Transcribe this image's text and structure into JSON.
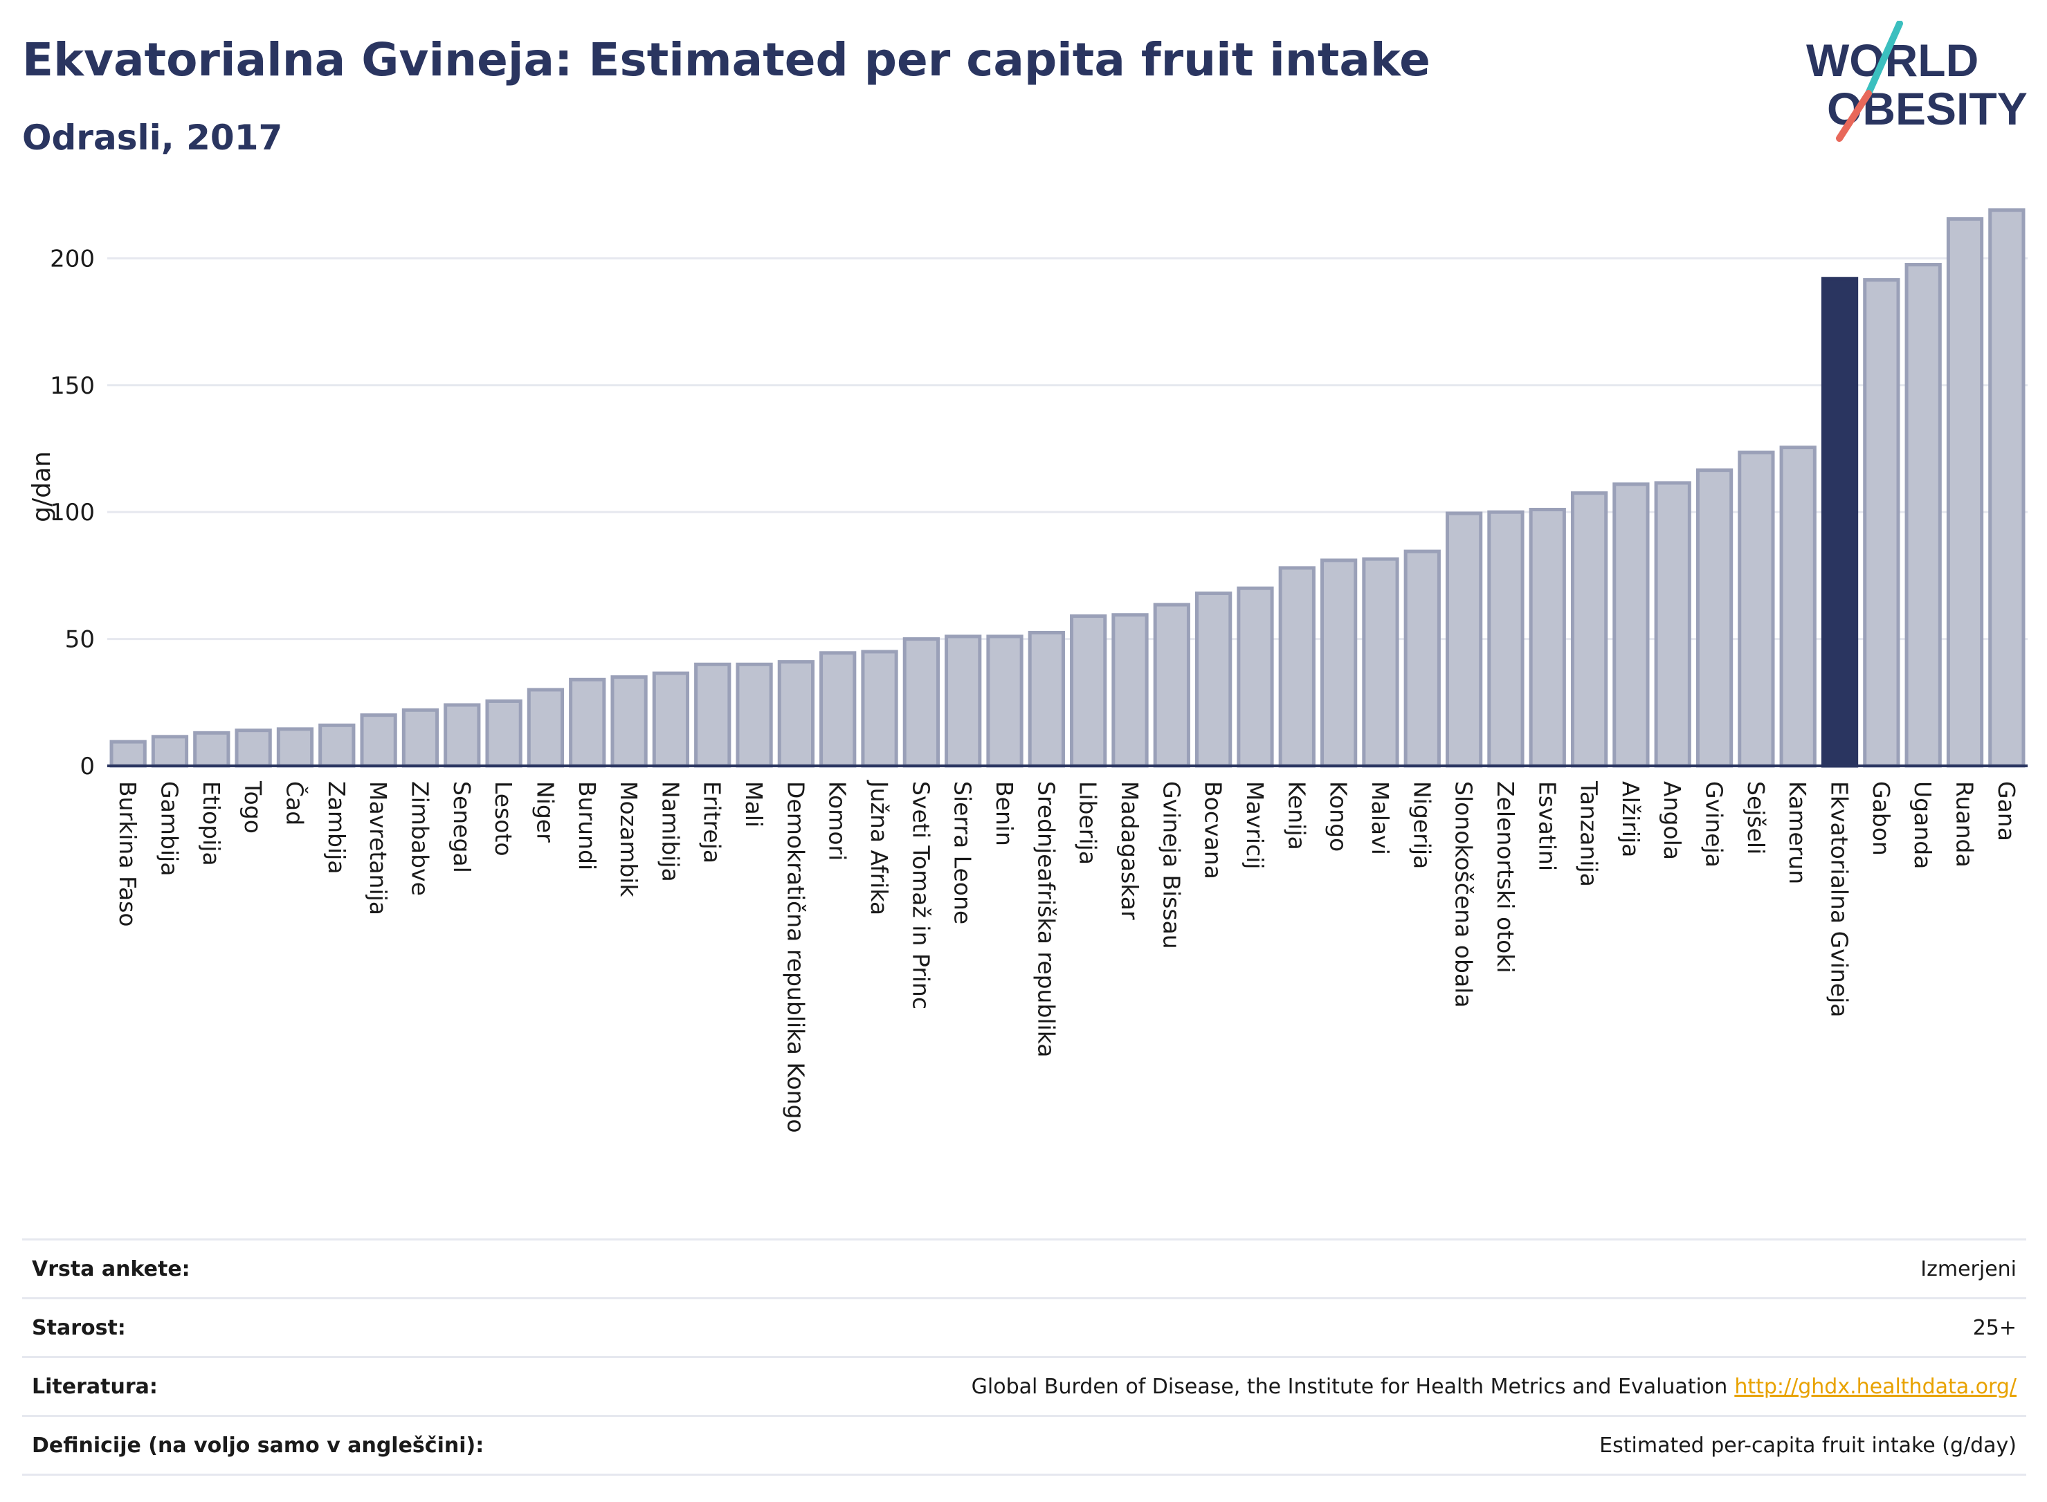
{
  "header": {
    "title": "Ekvatorialna Gvineja: Estimated per capita fruit intake",
    "subtitle": "Odrasli, 2017"
  },
  "logo": {
    "line1": "WORLD",
    "line2": "OBESITY"
  },
  "chart_data": {
    "type": "bar",
    "ylabel": "g/dan",
    "ylim": [
      0,
      220
    ],
    "yticks": [
      0,
      50,
      100,
      150,
      200
    ],
    "grid": true,
    "highlight": "Ekvatorialna Gvineja",
    "colors": {
      "bar": "#bec2d0",
      "bar_edge": "#9aa0b8",
      "highlight": "#2a3560",
      "grid": "#e6e8ef",
      "axis": "#2a3560"
    },
    "categories": [
      "Burkina Faso",
      "Gambija",
      "Etiopija",
      "Togo",
      "Čad",
      "Zambija",
      "Mavretanija",
      "Zimbabve",
      "Senegal",
      "Lesoto",
      "Niger",
      "Burundi",
      "Mozambik",
      "Namibija",
      "Eritreja",
      "Mali",
      "Demokratična republika Kongo",
      "Komori",
      "Južna Afrika",
      "Sveti Tomaž in Princ",
      "Sierra Leone",
      "Benin",
      "Srednjeafriška republika",
      "Liberija",
      "Madagaskar",
      "Gvineja Bissau",
      "Bocvana",
      "Mavricij",
      "Kenija",
      "Kongo",
      "Malavi",
      "Nigerija",
      "Slonokoščena obala",
      "Zelenortski otoki",
      "Esvatini",
      "Tanzanija",
      "Alžirija",
      "Angola",
      "Gvineja",
      "Sejšeli",
      "Kamerun",
      "Ekvatorialna Gvineja",
      "Gabon",
      "Uganda",
      "Ruanda",
      "Gana"
    ],
    "values": [
      9.5,
      11.5,
      13,
      14,
      14.5,
      16,
      20,
      22,
      24,
      25.5,
      30,
      34,
      35,
      36.5,
      40,
      40,
      41,
      44.5,
      45,
      50,
      51,
      51,
      52.5,
      59,
      59.5,
      63.5,
      68,
      70,
      78,
      81,
      81.5,
      84.5,
      99.5,
      100,
      101,
      107.5,
      111,
      111.5,
      116.5,
      123.5,
      125.5,
      192,
      191.5,
      197.5,
      215.5,
      219
    ]
  },
  "info": [
    {
      "label": "Vrsta ankete:",
      "value": "Izmerjeni"
    },
    {
      "label": "Starost:",
      "value": "25+"
    },
    {
      "label": "Literatura:",
      "value": "Global Burden of Disease, the Institute for Health Metrics and Evaluation",
      "link": "http://ghdx.healthdata.org/"
    },
    {
      "label": "Definicije (na voljo samo v angleščini):",
      "value": "Estimated per-capita fruit intake (g/day)"
    }
  ]
}
